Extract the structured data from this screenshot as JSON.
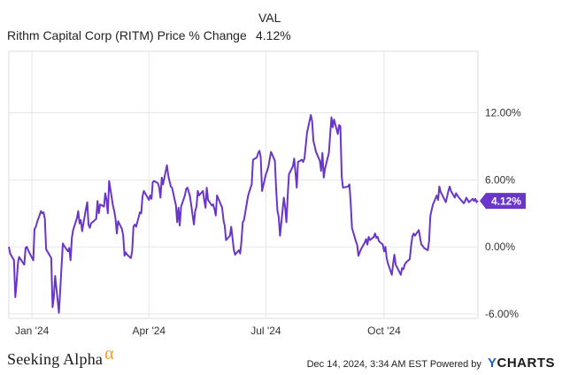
{
  "legend": {
    "header": "VAL",
    "series_name": "Rithm Capital Corp (RITM) Price % Change",
    "series_value": "4.12%"
  },
  "chart_data": {
    "type": "line",
    "series": [
      {
        "name": "Rithm Capital Corp (RITM) Price % Change",
        "color": "#6a35c9",
        "last_value_label": "4.12%",
        "points": [
          [
            "2023-12-14",
            0.0
          ],
          [
            "2023-12-15",
            -0.6
          ],
          [
            "2023-12-18",
            -1.2
          ],
          [
            "2023-12-19",
            -4.5
          ],
          [
            "2023-12-20",
            -3.3
          ],
          [
            "2023-12-21",
            -1.5
          ],
          [
            "2023-12-22",
            -0.9
          ],
          [
            "2023-12-26",
            -1.6
          ],
          [
            "2023-12-27",
            -0.1
          ],
          [
            "2023-12-28",
            0.0
          ],
          [
            "2023-12-29",
            -0.3
          ],
          [
            "2024-01-02",
            -1.2
          ],
          [
            "2024-01-03",
            1.6
          ],
          [
            "2024-01-04",
            1.8
          ],
          [
            "2024-01-05",
            2.2
          ],
          [
            "2024-01-08",
            3.2
          ],
          [
            "2024-01-09",
            3.0
          ],
          [
            "2024-01-10",
            3.1
          ],
          [
            "2024-01-11",
            2.5
          ],
          [
            "2024-01-12",
            -0.2
          ],
          [
            "2024-01-16",
            -1.0
          ],
          [
            "2024-01-17",
            -5.4
          ],
          [
            "2024-01-18",
            -4.5
          ],
          [
            "2024-01-19",
            -2.6
          ],
          [
            "2024-01-22",
            -5.9
          ],
          [
            "2024-01-23",
            -3.8
          ],
          [
            "2024-01-24",
            -1.8
          ],
          [
            "2024-01-25",
            0.3
          ],
          [
            "2024-01-26",
            0.1
          ],
          [
            "2024-01-29",
            -0.4
          ],
          [
            "2024-01-30",
            -0.1
          ],
          [
            "2024-01-31",
            -1.2
          ],
          [
            "2024-02-01",
            0.8
          ],
          [
            "2024-02-02",
            1.5
          ],
          [
            "2024-02-05",
            2.6
          ],
          [
            "2024-02-06",
            3.2
          ],
          [
            "2024-02-07",
            2.1
          ],
          [
            "2024-02-08",
            2.4
          ],
          [
            "2024-02-09",
            1.4
          ],
          [
            "2024-02-12",
            3.4
          ],
          [
            "2024-02-13",
            4.0
          ],
          [
            "2024-02-14",
            2.0
          ],
          [
            "2024-02-15",
            1.7
          ],
          [
            "2024-02-16",
            2.1
          ],
          [
            "2024-02-20",
            2.5
          ],
          [
            "2024-02-21",
            4.1
          ],
          [
            "2024-02-22",
            3.0
          ],
          [
            "2024-02-23",
            3.8
          ],
          [
            "2024-02-26",
            3.6
          ],
          [
            "2024-02-27",
            4.8
          ],
          [
            "2024-02-28",
            4.2
          ],
          [
            "2024-02-29",
            3.0
          ],
          [
            "2024-03-01",
            5.9
          ],
          [
            "2024-03-04",
            3.7
          ],
          [
            "2024-03-05",
            3.2
          ],
          [
            "2024-03-06",
            2.5
          ],
          [
            "2024-03-07",
            1.2
          ],
          [
            "2024-03-08",
            2.3
          ],
          [
            "2024-03-11",
            1.6
          ],
          [
            "2024-03-12",
            1.0
          ],
          [
            "2024-03-13",
            -0.8
          ],
          [
            "2024-03-14",
            -0.5
          ],
          [
            "2024-03-15",
            -0.7
          ],
          [
            "2024-03-18",
            -1.0
          ],
          [
            "2024-03-19",
            -0.3
          ],
          [
            "2024-03-20",
            1.8
          ],
          [
            "2024-03-21",
            2.0
          ],
          [
            "2024-03-22",
            1.8
          ],
          [
            "2024-03-25",
            3.1
          ],
          [
            "2024-03-26",
            3.0
          ],
          [
            "2024-03-27",
            4.5
          ],
          [
            "2024-03-28",
            5.0
          ],
          [
            "2024-04-01",
            4.2
          ],
          [
            "2024-04-02",
            4.6
          ],
          [
            "2024-04-03",
            4.3
          ],
          [
            "2024-04-04",
            5.8
          ],
          [
            "2024-04-05",
            5.9
          ],
          [
            "2024-04-08",
            5.7
          ],
          [
            "2024-04-09",
            5.3
          ],
          [
            "2024-04-10",
            4.4
          ],
          [
            "2024-04-11",
            6.2
          ],
          [
            "2024-04-12",
            5.6
          ],
          [
            "2024-04-15",
            7.3
          ],
          [
            "2024-04-16",
            6.4
          ],
          [
            "2024-04-17",
            5.9
          ],
          [
            "2024-04-18",
            5.4
          ],
          [
            "2024-04-19",
            5.3
          ],
          [
            "2024-04-22",
            3.7
          ],
          [
            "2024-04-23",
            2.2
          ],
          [
            "2024-04-24",
            3.5
          ],
          [
            "2024-04-25",
            1.9
          ],
          [
            "2024-04-26",
            3.6
          ],
          [
            "2024-04-29",
            4.6
          ],
          [
            "2024-04-30",
            5.2
          ],
          [
            "2024-05-01",
            5.3
          ],
          [
            "2024-05-02",
            4.9
          ],
          [
            "2024-05-03",
            4.5
          ],
          [
            "2024-05-06",
            2.0
          ],
          [
            "2024-05-07",
            3.2
          ],
          [
            "2024-05-08",
            3.6
          ],
          [
            "2024-05-09",
            5.0
          ],
          [
            "2024-05-10",
            4.6
          ],
          [
            "2024-05-13",
            5.0
          ],
          [
            "2024-05-14",
            4.2
          ],
          [
            "2024-05-15",
            3.5
          ],
          [
            "2024-05-16",
            5.3
          ],
          [
            "2024-05-17",
            4.2
          ],
          [
            "2024-05-20",
            3.7
          ],
          [
            "2024-05-21",
            3.8
          ],
          [
            "2024-05-22",
            3.4
          ],
          [
            "2024-05-23",
            2.8
          ],
          [
            "2024-05-24",
            4.6
          ],
          [
            "2024-05-28",
            3.5
          ],
          [
            "2024-05-29",
            2.4
          ],
          [
            "2024-05-30",
            1.9
          ],
          [
            "2024-05-31",
            0.6
          ],
          [
            "2024-06-03",
            1.0
          ],
          [
            "2024-06-04",
            1.8
          ],
          [
            "2024-06-05",
            0.8
          ],
          [
            "2024-06-06",
            -0.2
          ],
          [
            "2024-06-07",
            -0.7
          ],
          [
            "2024-06-10",
            -0.3
          ],
          [
            "2024-06-11",
            -0.6
          ],
          [
            "2024-06-12",
            0.5
          ],
          [
            "2024-06-13",
            2.2
          ],
          [
            "2024-06-14",
            2.4
          ],
          [
            "2024-06-17",
            4.5
          ],
          [
            "2024-06-18",
            4.9
          ],
          [
            "2024-06-20",
            5.6
          ],
          [
            "2024-06-21",
            7.8
          ],
          [
            "2024-06-24",
            8.0
          ],
          [
            "2024-06-25",
            8.4
          ],
          [
            "2024-06-26",
            8.6
          ],
          [
            "2024-06-27",
            8.0
          ],
          [
            "2024-06-28",
            5.0
          ],
          [
            "2024-07-01",
            6.5
          ],
          [
            "2024-07-02",
            6.8
          ],
          [
            "2024-07-03",
            7.2
          ],
          [
            "2024-07-05",
            8.5
          ],
          [
            "2024-07-08",
            7.7
          ],
          [
            "2024-07-09",
            5.2
          ],
          [
            "2024-07-10",
            3.2
          ],
          [
            "2024-07-11",
            2.7
          ],
          [
            "2024-07-12",
            1.0
          ],
          [
            "2024-07-15",
            4.4
          ],
          [
            "2024-07-16",
            3.5
          ],
          [
            "2024-07-17",
            2.2
          ],
          [
            "2024-07-18",
            4.6
          ],
          [
            "2024-07-19",
            6.5
          ],
          [
            "2024-07-22",
            7.2
          ],
          [
            "2024-07-23",
            7.9
          ],
          [
            "2024-07-24",
            6.7
          ],
          [
            "2024-07-25",
            5.3
          ],
          [
            "2024-07-26",
            7.6
          ],
          [
            "2024-07-29",
            7.8
          ],
          [
            "2024-07-30",
            7.6
          ],
          [
            "2024-07-31",
            7.9
          ],
          [
            "2024-08-01",
            9.0
          ],
          [
            "2024-08-02",
            10.2
          ],
          [
            "2024-08-05",
            11.8
          ],
          [
            "2024-08-06",
            11.2
          ],
          [
            "2024-08-07",
            9.5
          ],
          [
            "2024-08-08",
            9.0
          ],
          [
            "2024-08-09",
            8.5
          ],
          [
            "2024-08-12",
            7.7
          ],
          [
            "2024-08-13",
            6.8
          ],
          [
            "2024-08-14",
            8.4
          ],
          [
            "2024-08-15",
            6.2
          ],
          [
            "2024-08-16",
            7.0
          ],
          [
            "2024-08-19",
            8.4
          ],
          [
            "2024-08-20",
            10.0
          ],
          [
            "2024-08-21",
            11.6
          ],
          [
            "2024-08-22",
            10.7
          ],
          [
            "2024-08-23",
            11.4
          ],
          [
            "2024-08-26",
            10.1
          ],
          [
            "2024-08-27",
            10.9
          ],
          [
            "2024-08-28",
            10.8
          ],
          [
            "2024-08-29",
            6.3
          ],
          [
            "2024-08-30",
            5.3
          ],
          [
            "2024-09-03",
            5.4
          ],
          [
            "2024-09-04",
            5.6
          ],
          [
            "2024-09-05",
            4.0
          ],
          [
            "2024-09-06",
            1.7
          ],
          [
            "2024-09-09",
            0.5
          ],
          [
            "2024-09-10",
            0.2
          ],
          [
            "2024-09-11",
            -0.8
          ],
          [
            "2024-09-12",
            -0.5
          ],
          [
            "2024-09-13",
            -0.2
          ],
          [
            "2024-09-16",
            0.4
          ],
          [
            "2024-09-17",
            0.7
          ],
          [
            "2024-09-18",
            0.2
          ],
          [
            "2024-09-19",
            0.9
          ],
          [
            "2024-09-20",
            0.6
          ],
          [
            "2024-09-23",
            0.9
          ],
          [
            "2024-09-24",
            1.2
          ],
          [
            "2024-09-25",
            0.8
          ],
          [
            "2024-09-26",
            0.9
          ],
          [
            "2024-09-27",
            0.5
          ],
          [
            "2024-09-30",
            0.2
          ],
          [
            "2024-10-01",
            -0.4
          ],
          [
            "2024-10-02",
            0.0
          ],
          [
            "2024-10-03",
            -1.0
          ],
          [
            "2024-10-04",
            -1.5
          ],
          [
            "2024-10-07",
            -2.5
          ],
          [
            "2024-10-08",
            -1.5
          ],
          [
            "2024-10-09",
            -0.7
          ],
          [
            "2024-10-10",
            -1.6
          ],
          [
            "2024-10-11",
            -1.8
          ],
          [
            "2024-10-14",
            -2.5
          ],
          [
            "2024-10-15",
            -1.9
          ],
          [
            "2024-10-16",
            -2.0
          ],
          [
            "2024-10-17",
            -1.6
          ],
          [
            "2024-10-18",
            -1.4
          ],
          [
            "2024-10-21",
            -1.1
          ],
          [
            "2024-10-22",
            0.1
          ],
          [
            "2024-10-23",
            0.9
          ],
          [
            "2024-10-24",
            1.2
          ],
          [
            "2024-10-25",
            1.0
          ],
          [
            "2024-10-28",
            1.5
          ],
          [
            "2024-10-29",
            0.8
          ],
          [
            "2024-10-30",
            0.2
          ],
          [
            "2024-10-31",
            0.1
          ],
          [
            "2024-11-01",
            -0.1
          ],
          [
            "2024-11-04",
            -0.3
          ],
          [
            "2024-11-05",
            0.5
          ],
          [
            "2024-11-06",
            2.8
          ],
          [
            "2024-11-07",
            3.3
          ],
          [
            "2024-11-08",
            3.8
          ],
          [
            "2024-11-11",
            4.6
          ],
          [
            "2024-11-12",
            4.2
          ],
          [
            "2024-11-13",
            5.4
          ],
          [
            "2024-11-14",
            4.9
          ],
          [
            "2024-11-15",
            4.7
          ],
          [
            "2024-11-18",
            4.0
          ],
          [
            "2024-11-19",
            4.5
          ],
          [
            "2024-11-20",
            5.0
          ],
          [
            "2024-11-21",
            5.4
          ],
          [
            "2024-11-22",
            5.0
          ],
          [
            "2024-11-25",
            4.4
          ],
          [
            "2024-11-26",
            4.8
          ],
          [
            "2024-11-27",
            4.6
          ],
          [
            "2024-11-29",
            4.3
          ],
          [
            "2024-12-02",
            3.9
          ],
          [
            "2024-12-03",
            4.1
          ],
          [
            "2024-12-04",
            4.4
          ],
          [
            "2024-12-05",
            4.2
          ],
          [
            "2024-12-06",
            4.0
          ],
          [
            "2024-12-09",
            4.3
          ],
          [
            "2024-12-10",
            4.1
          ],
          [
            "2024-12-11",
            4.3
          ],
          [
            "2024-12-12",
            4.0
          ],
          [
            "2024-12-13",
            4.12
          ]
        ]
      }
    ],
    "x_ticks": [
      {
        "date": "2024-01-01",
        "label": "Jan '24"
      },
      {
        "date": "2024-04-01",
        "label": "Apr '24"
      },
      {
        "date": "2024-07-01",
        "label": "Jul '24"
      },
      {
        "date": "2024-10-01",
        "label": "Oct '24"
      }
    ],
    "y_ticks": [
      {
        "value": 12,
        "label": "12.00%"
      },
      {
        "value": 6,
        "label": "6.00%"
      },
      {
        "value": 0,
        "label": "0.00%"
      },
      {
        "value": -6,
        "label": "-6.00%"
      }
    ],
    "xlim": [
      "2023-12-14",
      "2024-12-13"
    ],
    "ylim": [
      -6.4,
      17.5
    ],
    "grid": true,
    "legend_position": "top-left"
  },
  "footer": {
    "brand": "Seeking Alpha",
    "brand_mark": "α",
    "credit": "Dec 14, 2024, 3:34 AM EST Powered by",
    "ycharts_y": "Y",
    "ycharts_rest": "CHARTS"
  }
}
